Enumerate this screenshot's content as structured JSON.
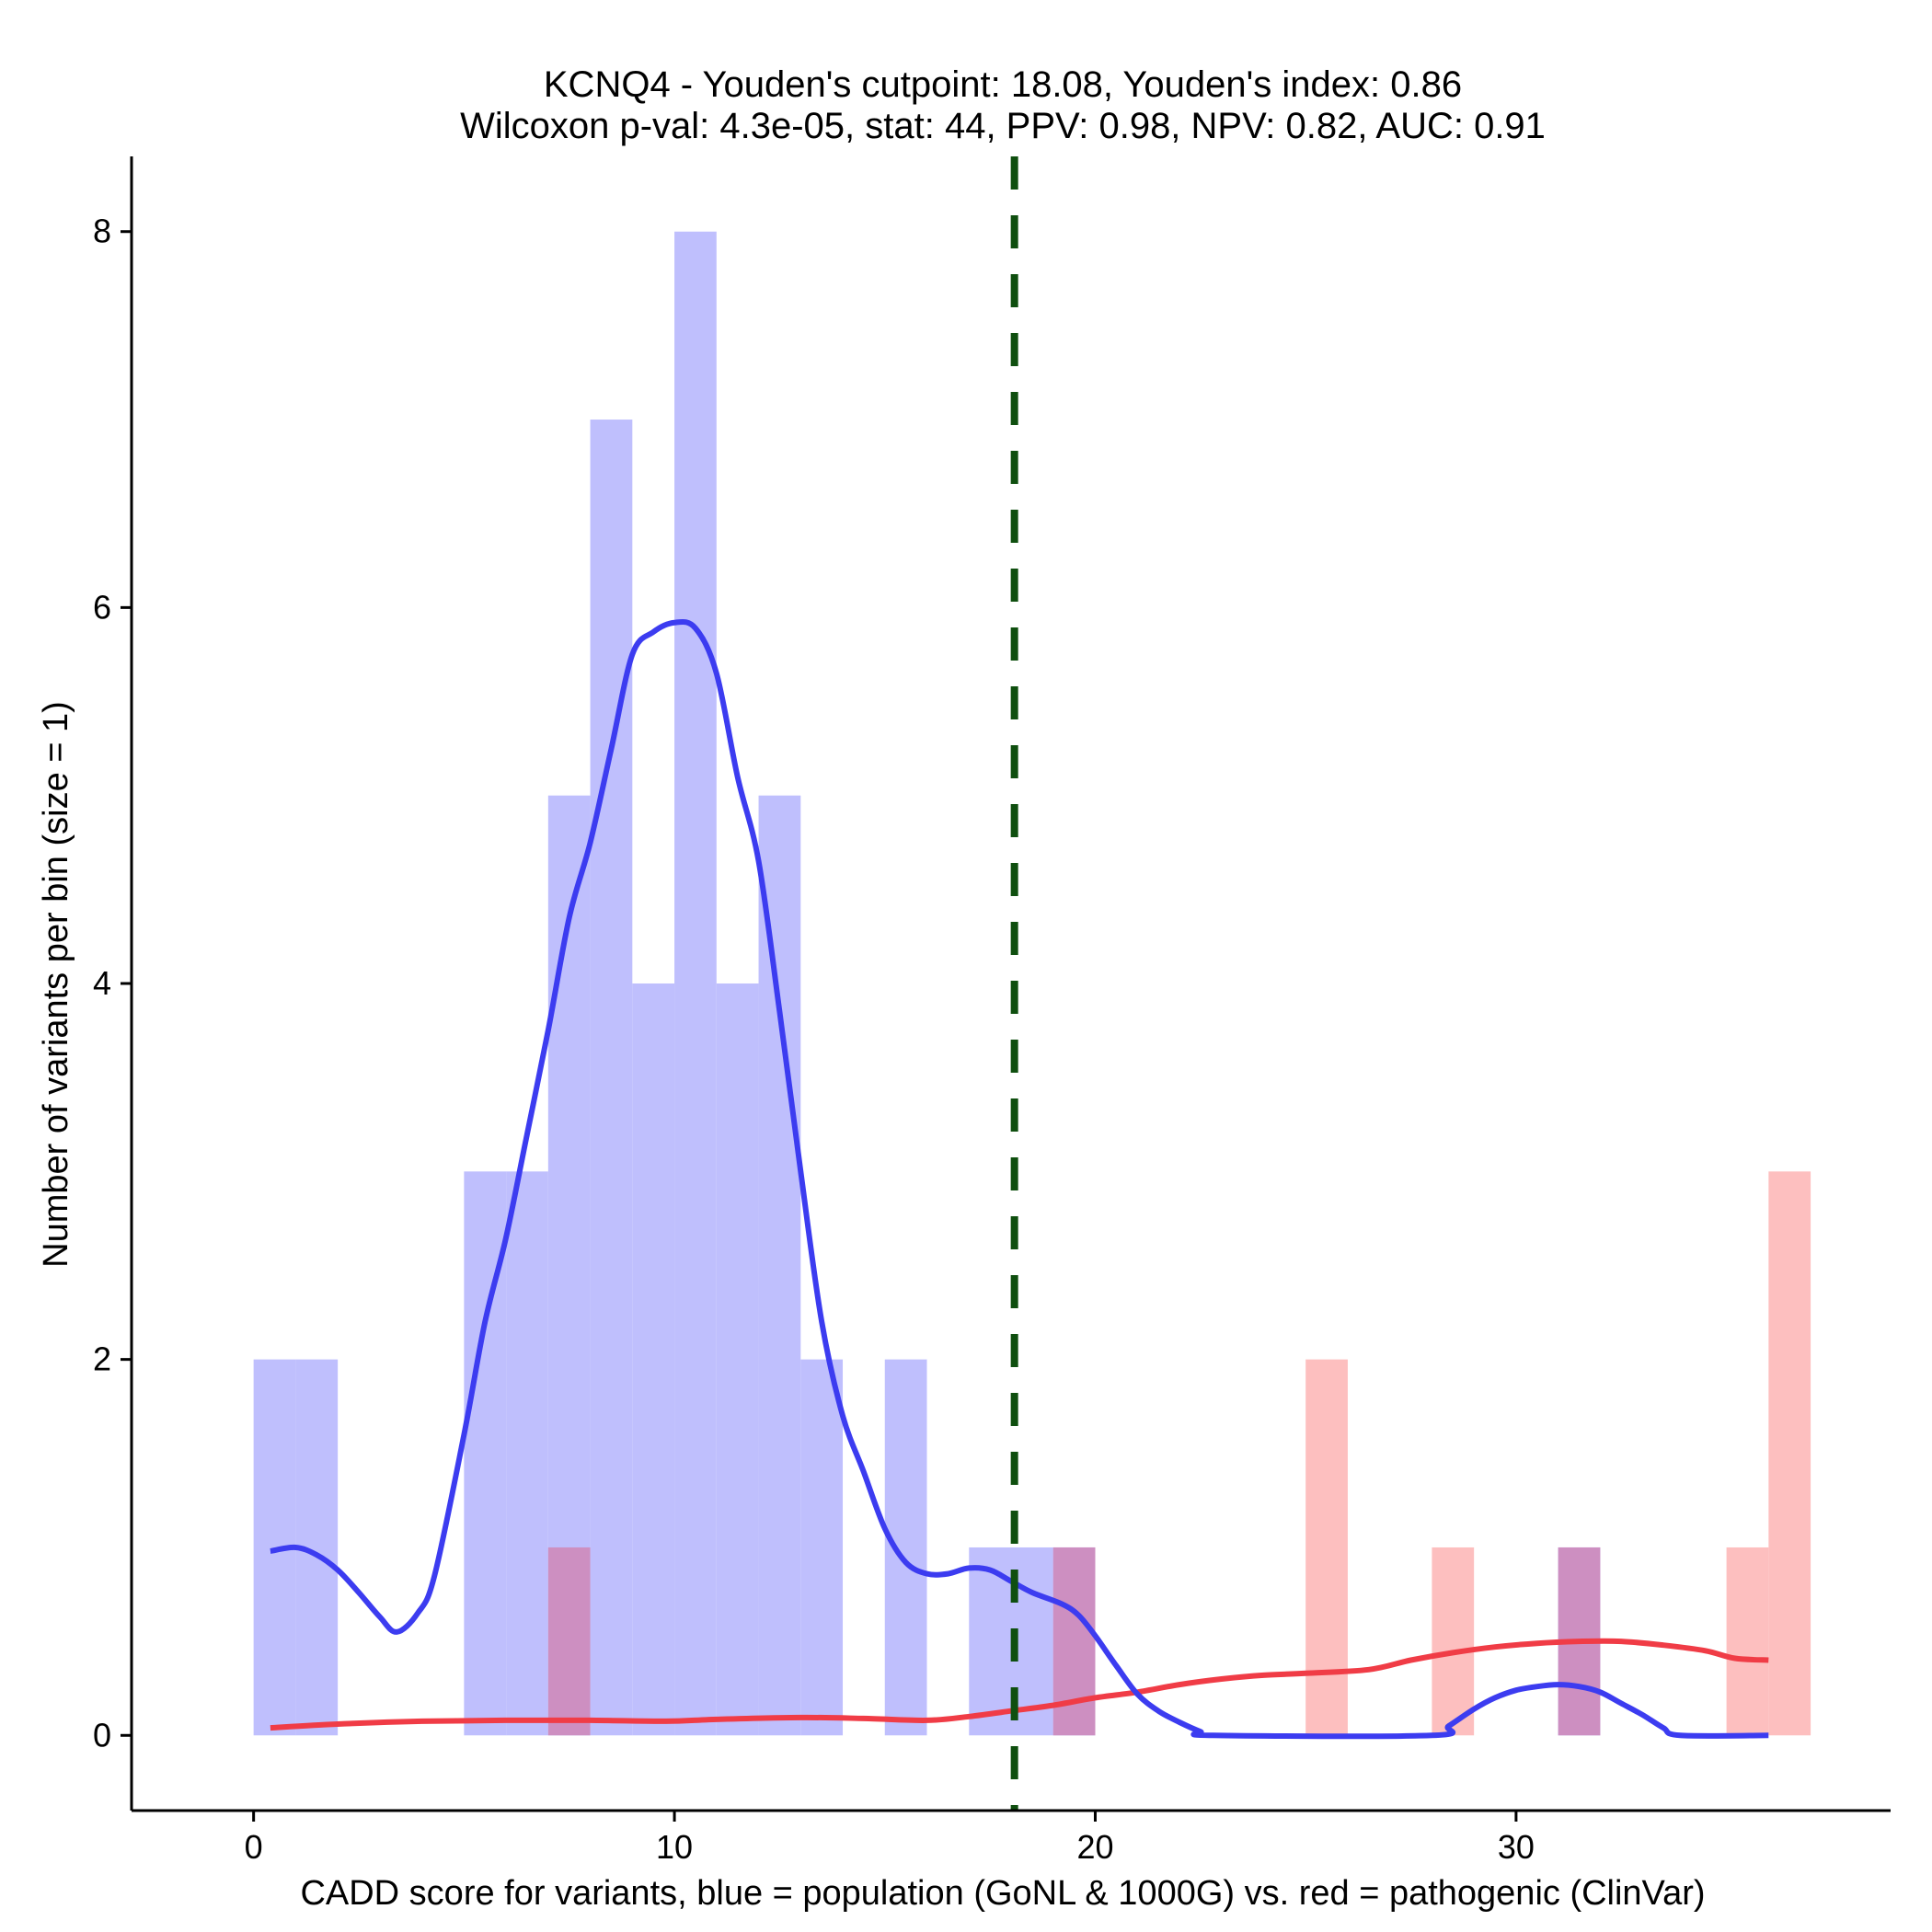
{
  "chart_data": {
    "type": "histogram",
    "title": "KCNQ4 - Youden's cutpoint: 18.08, Youden's index: 0.86",
    "subtitle": "Wilcoxon p-val: 4.3e-05, stat: 44, PPV: 0.98, NPV: 0.82, AUC: 0.91",
    "xlabel": "CADD score for variants, blue = population (GoNL & 1000G) vs. red = pathogenic (ClinVar)",
    "ylabel": "Number of variants per bin (size = 1)",
    "xlim": [
      -2.9,
      38.9
    ],
    "ylim": [
      -0.4,
      8.4
    ],
    "x_ticks": [
      0,
      10,
      20,
      30
    ],
    "x_tick_labels": [
      "0",
      "10",
      "20",
      "30"
    ],
    "y_ticks": [
      0,
      2,
      4,
      6,
      8
    ],
    "y_tick_labels": [
      "0",
      "2",
      "4",
      "6",
      "8"
    ],
    "bin_width": 1,
    "cutpoint": 18.08,
    "colors": {
      "population_bar": "#bfbffd",
      "pathogenic_bar": "#fdbfbf",
      "overlap_bar": "#cd8fc1",
      "population_density": "#3c3cf0",
      "pathogenic_density": "#f03c46",
      "cutpoint_line": "#0f4f0f"
    },
    "series": [
      {
        "name": "population (GoNL & 1000G)",
        "bins": [
          {
            "start": 0,
            "count": 2
          },
          {
            "start": 1,
            "count": 2
          },
          {
            "start": 5,
            "count": 3
          },
          {
            "start": 6,
            "count": 3
          },
          {
            "start": 7,
            "count": 5
          },
          {
            "start": 8,
            "count": 7
          },
          {
            "start": 9,
            "count": 4
          },
          {
            "start": 10,
            "count": 8
          },
          {
            "start": 11,
            "count": 4
          },
          {
            "start": 12,
            "count": 5
          },
          {
            "start": 13,
            "count": 2
          },
          {
            "start": 15,
            "count": 2
          },
          {
            "start": 17,
            "count": 1
          },
          {
            "start": 18,
            "count": 1
          },
          {
            "start": 19,
            "count": 1
          },
          {
            "start": 31,
            "count": 1
          }
        ],
        "density": [
          [
            0.4,
            0.98
          ],
          [
            1.0,
            1.0
          ],
          [
            1.5,
            0.96
          ],
          [
            2.0,
            0.88
          ],
          [
            2.5,
            0.76
          ],
          [
            3.0,
            0.63
          ],
          [
            3.4,
            0.55
          ],
          [
            3.9,
            0.65
          ],
          [
            4.3,
            0.85
          ],
          [
            5.0,
            1.6
          ],
          [
            5.5,
            2.2
          ],
          [
            6.0,
            2.65
          ],
          [
            6.5,
            3.2
          ],
          [
            7.0,
            3.75
          ],
          [
            7.5,
            4.35
          ],
          [
            8.0,
            4.75
          ],
          [
            8.5,
            5.25
          ],
          [
            9.0,
            5.75
          ],
          [
            9.5,
            5.87
          ],
          [
            10.0,
            5.92
          ],
          [
            10.5,
            5.89
          ],
          [
            11.0,
            5.65
          ],
          [
            11.5,
            5.1
          ],
          [
            12.0,
            4.65
          ],
          [
            12.5,
            3.85
          ],
          [
            13.0,
            3.0
          ],
          [
            13.5,
            2.2
          ],
          [
            14.0,
            1.7
          ],
          [
            14.5,
            1.4
          ],
          [
            15.0,
            1.1
          ],
          [
            15.5,
            0.92
          ],
          [
            16.0,
            0.86
          ],
          [
            16.5,
            0.86
          ],
          [
            17.0,
            0.89
          ],
          [
            17.5,
            0.88
          ],
          [
            18.0,
            0.82
          ],
          [
            18.5,
            0.76
          ],
          [
            19.2,
            0.7
          ],
          [
            19.6,
            0.64
          ],
          [
            20.0,
            0.53
          ],
          [
            20.5,
            0.37
          ],
          [
            21.0,
            0.22
          ],
          [
            21.5,
            0.13
          ],
          [
            22.0,
            0.07
          ],
          [
            22.5,
            0.02
          ],
          [
            22.8,
            0.0
          ],
          [
            28.0,
            0.0
          ],
          [
            28.4,
            0.05
          ],
          [
            29.0,
            0.14
          ],
          [
            29.5,
            0.2
          ],
          [
            30.0,
            0.24
          ],
          [
            30.5,
            0.26
          ],
          [
            31.0,
            0.27
          ],
          [
            31.5,
            0.26
          ],
          [
            32.0,
            0.23
          ],
          [
            32.5,
            0.17
          ],
          [
            33.0,
            0.11
          ],
          [
            33.5,
            0.04
          ],
          [
            33.9,
            0.0
          ],
          [
            36.0,
            0.0
          ]
        ]
      },
      {
        "name": "pathogenic (ClinVar)",
        "bins": [
          {
            "start": 7,
            "count": 1
          },
          {
            "start": 19,
            "count": 1
          },
          {
            "start": 25,
            "count": 2
          },
          {
            "start": 28,
            "count": 1
          },
          {
            "start": 31,
            "count": 1
          },
          {
            "start": 35,
            "count": 1
          },
          {
            "start": 36,
            "count": 3
          }
        ],
        "density": [
          [
            0.4,
            0.04
          ],
          [
            2.0,
            0.06
          ],
          [
            4.0,
            0.075
          ],
          [
            6.0,
            0.08
          ],
          [
            8.0,
            0.08
          ],
          [
            9.8,
            0.075
          ],
          [
            11.0,
            0.085
          ],
          [
            13.0,
            0.095
          ],
          [
            14.5,
            0.09
          ],
          [
            16.0,
            0.08
          ],
          [
            17.0,
            0.1
          ],
          [
            18.0,
            0.13
          ],
          [
            19.0,
            0.16
          ],
          [
            20.0,
            0.2
          ],
          [
            21.0,
            0.23
          ],
          [
            22.0,
            0.27
          ],
          [
            23.0,
            0.3
          ],
          [
            24.0,
            0.32
          ],
          [
            25.0,
            0.33
          ],
          [
            26.5,
            0.35
          ],
          [
            27.5,
            0.4
          ],
          [
            28.5,
            0.44
          ],
          [
            29.5,
            0.47
          ],
          [
            30.5,
            0.49
          ],
          [
            31.5,
            0.5
          ],
          [
            32.5,
            0.5
          ],
          [
            33.5,
            0.48
          ],
          [
            34.5,
            0.45
          ],
          [
            35.2,
            0.41
          ],
          [
            36.0,
            0.4
          ]
        ]
      }
    ]
  }
}
